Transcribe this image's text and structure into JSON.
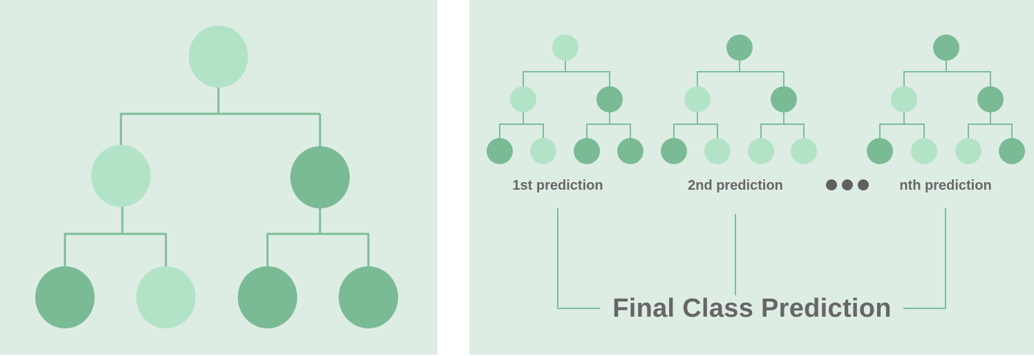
{
  "colors": {
    "panel": "#deede4",
    "node_light": "#b3e3c7",
    "node_dark": "#7aba95",
    "line": "#7cbd98",
    "text": "#666666",
    "dot": "#606060"
  },
  "single_tree": {
    "root": "light",
    "level1": [
      "light",
      "dark"
    ],
    "level2": [
      "dark",
      "light",
      "dark",
      "dark"
    ]
  },
  "forest_trees": [
    {
      "label": "1st prediction",
      "root": "light",
      "level1": [
        "light",
        "dark"
      ],
      "level2": [
        "dark",
        "light",
        "dark",
        "dark"
      ]
    },
    {
      "label": "2nd prediction",
      "root": "dark",
      "level1": [
        "light",
        "dark"
      ],
      "level2": [
        "dark",
        "light",
        "light",
        "light"
      ]
    },
    {
      "label": "nth prediction",
      "root": "dark",
      "level1": [
        "light",
        "dark"
      ],
      "level2": [
        "dark",
        "light",
        "light",
        "dark"
      ]
    }
  ],
  "ellipsis": "●●●",
  "final_label": "Final Class Prediction"
}
